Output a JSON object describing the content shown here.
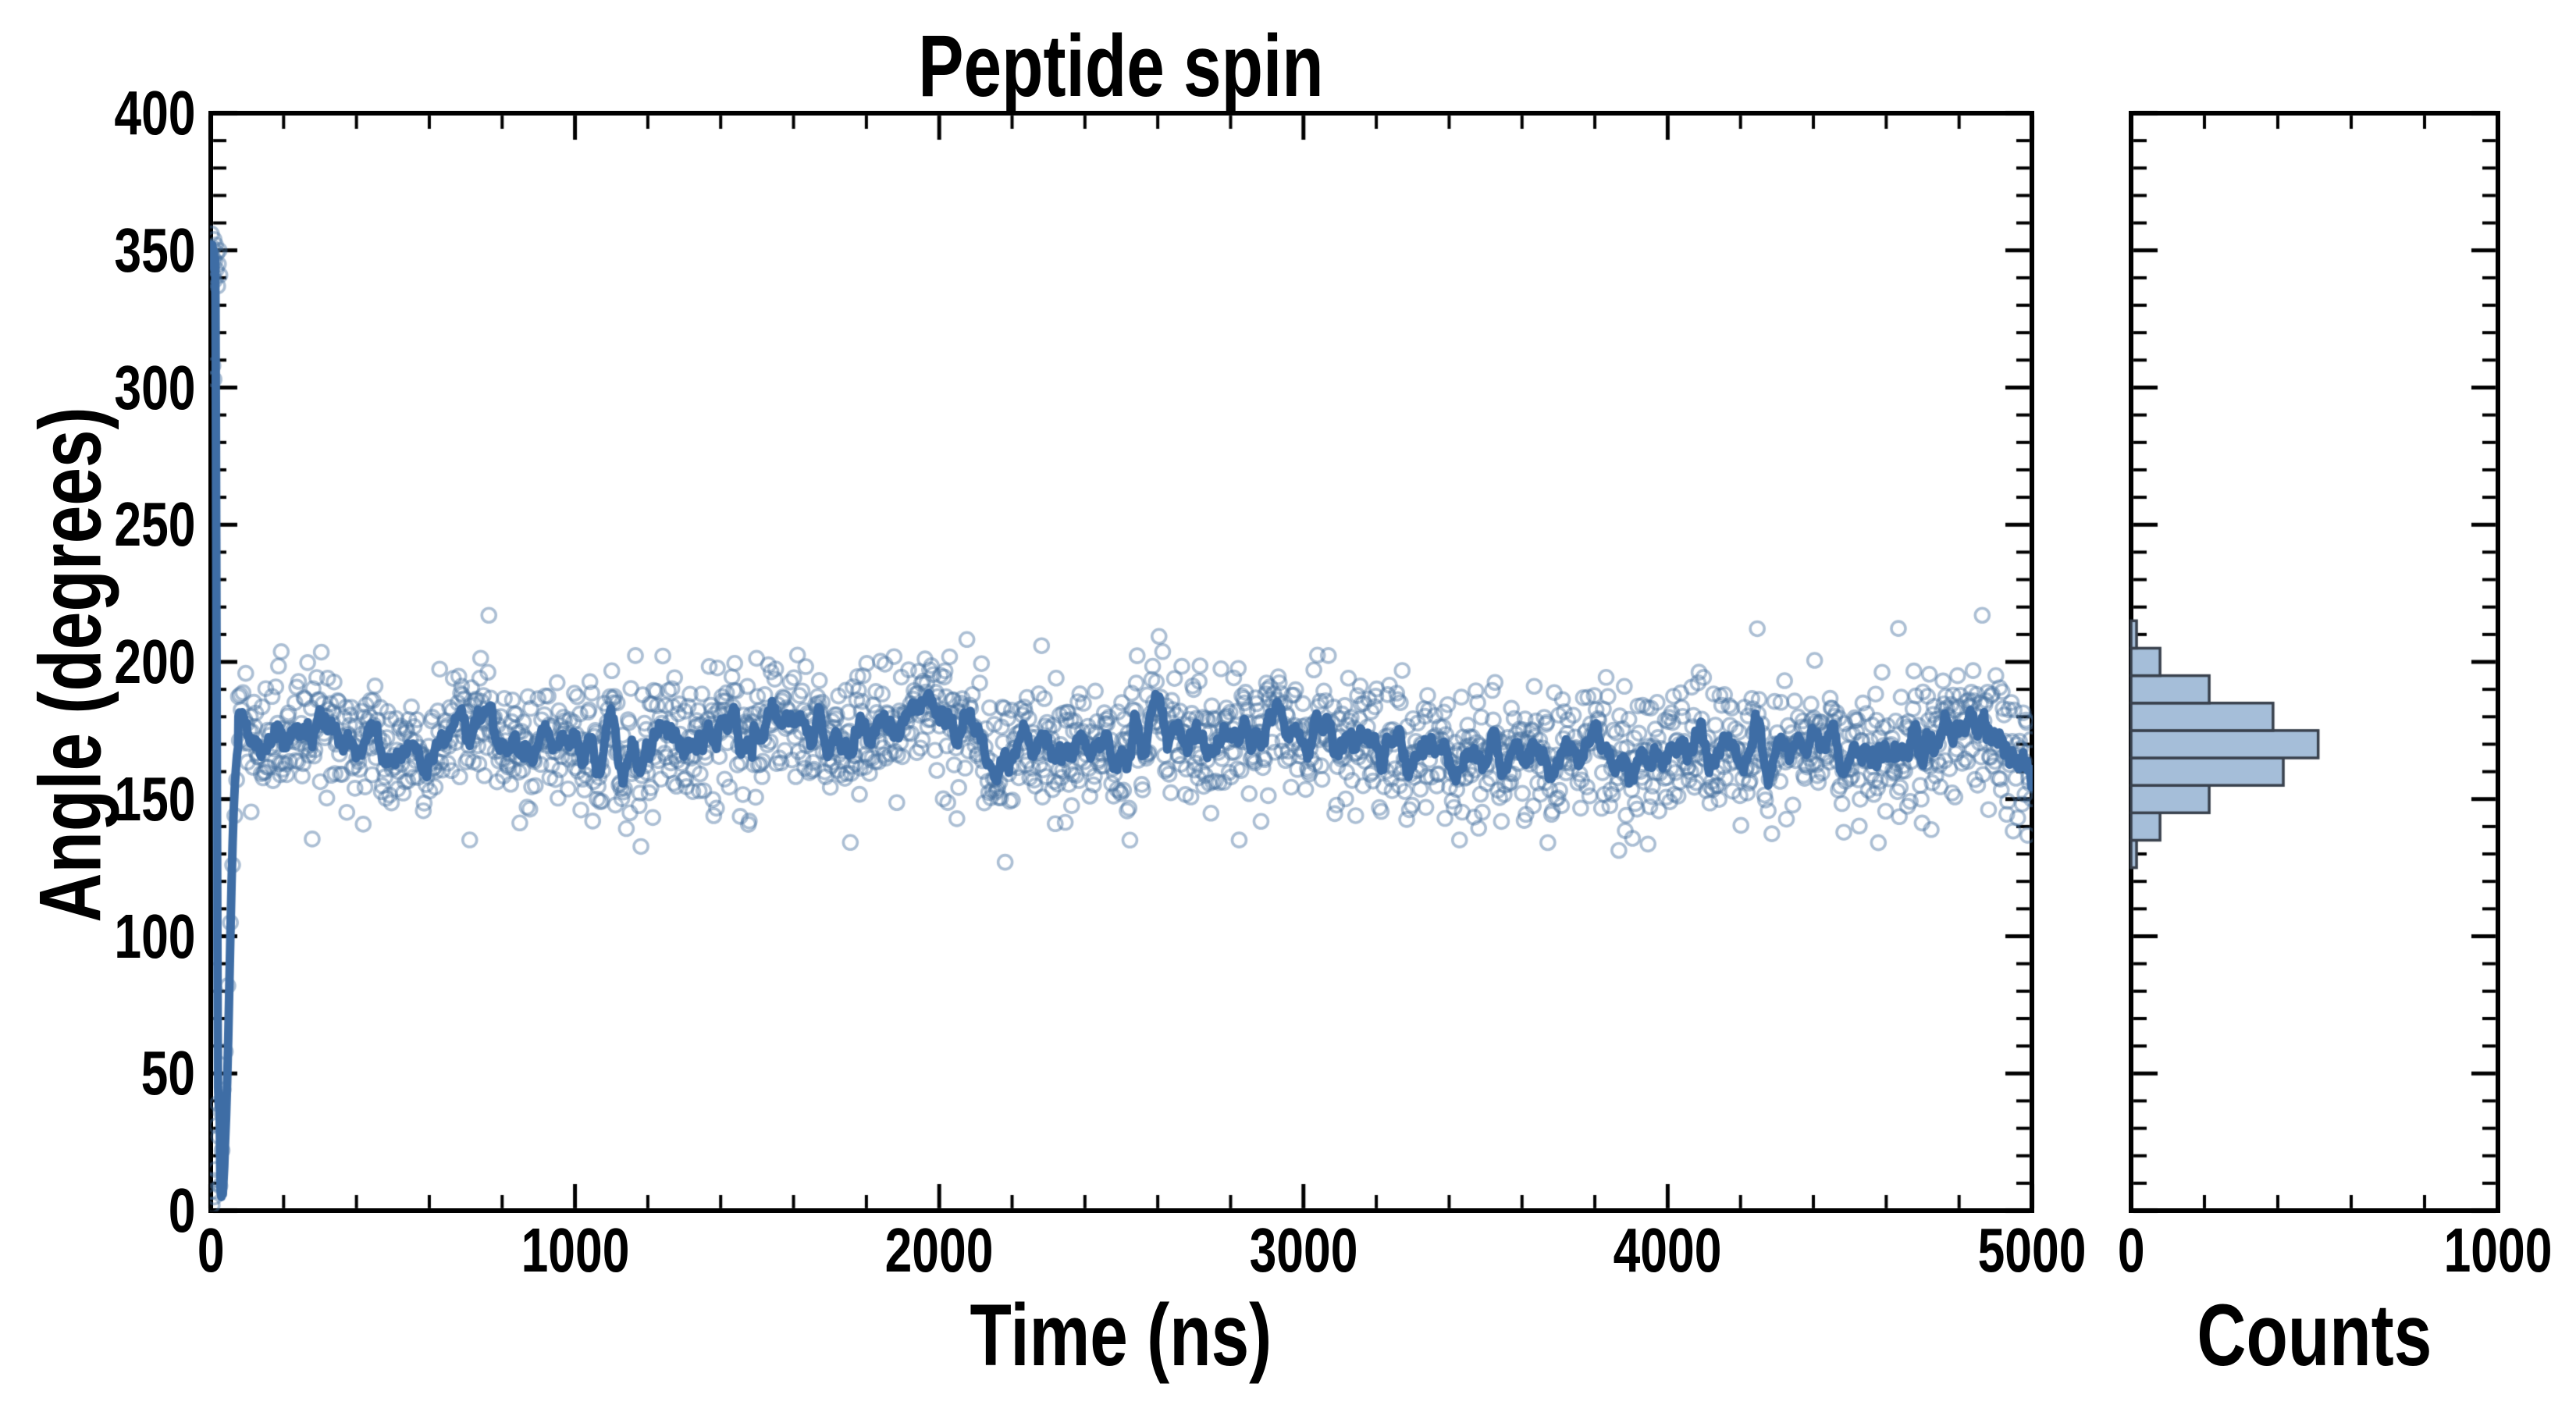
{
  "figure": {
    "title": "Peptide spin"
  },
  "colors": {
    "background": "#ffffff",
    "axis": "#000000",
    "text": "#000000",
    "scatter_edge": "rgba(72,112,160,0.45)",
    "avg_line": "#3e6da5",
    "hist_fill": "#a5bed9",
    "hist_edge": "#39414d"
  },
  "main_plot": {
    "xlabel": "Time (ns)",
    "ylabel": "Angle (degrees)",
    "xlim": [
      0,
      5000
    ],
    "ylim": [
      0,
      400
    ],
    "x_major_ticks": [
      0,
      1000,
      2000,
      3000,
      4000,
      5000
    ],
    "x_minor_step": 200,
    "y_major_ticks": [
      0,
      50,
      100,
      150,
      200,
      250,
      300,
      350,
      400
    ],
    "y_minor_step": 10,
    "grid": false,
    "tick_direction": "in"
  },
  "hist_plot": {
    "xlabel": "Counts",
    "xlim": [
      0,
      1000
    ],
    "x_major_ticks": [
      0,
      1000
    ],
    "x_minor_step": 200,
    "y_minor_step": 10,
    "y_major_step": 50,
    "grid": false,
    "tick_direction": "in"
  },
  "chart_data": [
    {
      "type": "scatter",
      "title": "Peptide spin",
      "xlabel": "Time (ns)",
      "ylabel": "Angle (degrees)",
      "xlim": [
        0,
        5000
      ],
      "ylim": [
        0,
        400
      ],
      "legend": "none",
      "marker": "open-circle",
      "series": [
        {
          "name": "angle-samples",
          "description": "raw angle trajectory: starts near 350 deg, wraps through 0, equilibrates near 172 deg",
          "transient_points_350": [
            [
              1,
              349
            ],
            [
              2,
              356
            ],
            [
              3,
              344
            ],
            [
              5,
              351
            ],
            [
              6,
              341
            ],
            [
              7,
              347
            ],
            [
              9,
              354
            ],
            [
              10,
              339
            ],
            [
              11,
              346
            ],
            [
              13,
              352
            ],
            [
              15,
              343
            ],
            [
              17,
              349
            ],
            [
              19,
              337
            ],
            [
              21,
              345
            ],
            [
              23,
              350
            ],
            [
              25,
              341
            ]
          ],
          "transient_points_outliers": [
            [
              6,
              308
            ],
            [
              9,
              303
            ]
          ],
          "transient_points_low": [
            [
              2,
              7
            ],
            [
              4,
              2
            ],
            [
              7,
              11
            ],
            [
              10,
              5
            ],
            [
              13,
              15
            ],
            [
              16,
              31
            ],
            [
              19,
              39
            ],
            [
              22,
              27
            ],
            [
              25,
              9
            ],
            [
              28,
              36
            ],
            [
              31,
              22
            ],
            [
              34,
              44
            ]
          ],
          "transient_points_rise": [
            [
              40,
              58
            ],
            [
              47,
              82
            ],
            [
              54,
              105
            ],
            [
              60,
              126
            ],
            [
              66,
              144
            ],
            [
              71,
              157
            ]
          ],
          "steady_state": {
            "t_start": 76,
            "t_end": 5000,
            "dt": 2.5,
            "mean": 171.5,
            "sd": 12.3,
            "wander_tau": 260,
            "wander_sigma": 0.7,
            "outlier_prob": 0.0035,
            "outlier_magnitude": [
              26,
              42
            ],
            "clamp": [
              127,
              217
            ],
            "seed": 7
          }
        },
        {
          "name": "running-average",
          "style": "thick-line",
          "window_points": 9,
          "transient_path": [
            [
              2,
              349
            ],
            [
              4,
              352
            ],
            [
              6,
              346
            ],
            [
              8,
              350
            ],
            [
              10,
              343
            ],
            [
              12,
              347
            ],
            [
              13,
              330
            ],
            [
              14,
              290
            ],
            [
              15,
              245
            ],
            [
              16,
              195
            ],
            [
              17,
              150
            ],
            [
              18,
              105
            ],
            [
              19,
              68
            ],
            [
              20,
              45
            ],
            [
              22,
              38
            ],
            [
              24,
              42
            ],
            [
              25,
              28
            ],
            [
              26,
              14
            ],
            [
              27,
              7
            ],
            [
              29,
              5
            ],
            [
              31,
              9
            ],
            [
              33,
              6
            ],
            [
              35,
              11
            ],
            [
              37,
              16
            ],
            [
              39,
              24
            ],
            [
              42,
              34
            ],
            [
              45,
              47
            ],
            [
              48,
              63
            ],
            [
              51,
              82
            ],
            [
              54,
              101
            ],
            [
              57,
              119
            ],
            [
              60,
              134
            ],
            [
              63,
              146
            ],
            [
              66,
              155
            ],
            [
              69,
              161
            ],
            [
              72,
              166
            ],
            [
              75,
              169
            ]
          ]
        }
      ]
    },
    {
      "type": "bar",
      "orientation": "horizontal",
      "xlabel": "Counts",
      "ylabel": "Angle (degrees)",
      "xlim": [
        0,
        1000
      ],
      "bin_edges": [
        125,
        135,
        145,
        155,
        165,
        175,
        185,
        195,
        205,
        215
      ],
      "counts": [
        15,
        79,
        213,
        415,
        510,
        387,
        213,
        79,
        15
      ]
    }
  ]
}
